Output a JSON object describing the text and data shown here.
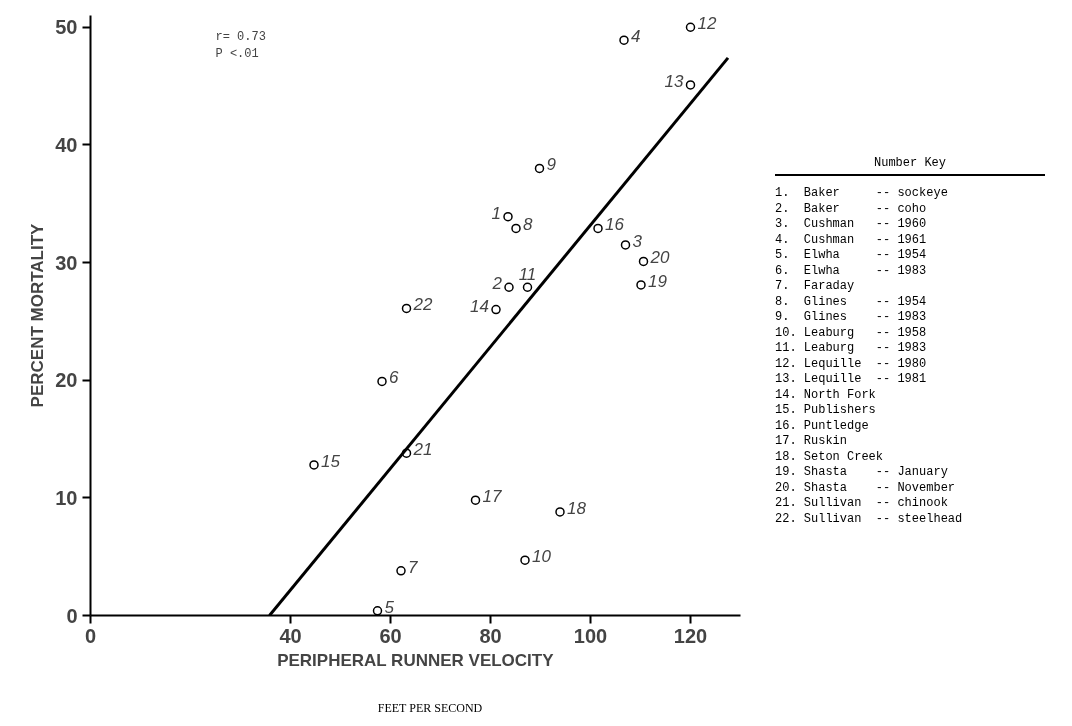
{
  "chart_data": {
    "type": "scatter",
    "xlabel": "PERIPHERAL RUNNER VELOCITY",
    "ylabel": "PERCENT MORTALITY",
    "xlim": [
      0,
      130
    ],
    "xticks": [
      0,
      40,
      60,
      80,
      100,
      120
    ],
    "ylim": [
      0,
      51
    ],
    "yticks": [
      0,
      10,
      20,
      30,
      40,
      50
    ],
    "grid": false,
    "line_style": "solid",
    "series": [
      {
        "marker": "circle",
        "color": "#000000",
        "x": [
          83.5,
          83.7,
          107.0,
          106.7,
          57.4,
          58.3,
          62.1,
          85.1,
          89.8,
          86.9,
          87.4,
          120,
          120,
          81.1,
          44.7,
          101.5,
          77.0,
          93.9,
          110.1,
          110.6,
          63.2,
          63.2
        ],
        "values": [
          33.9,
          27.9,
          31.5,
          48.9,
          0.4,
          19.9,
          3.8,
          32.9,
          38.0,
          4.7,
          27.9,
          50.0,
          45.1,
          26.0,
          12.8,
          32.9,
          9.8,
          8.8,
          28.1,
          30.1,
          13.8,
          26.1
        ]
      },
      {
        "type": "line",
        "marker": "none",
        "color": "#000000",
        "x": [
          35.8,
          127.5
        ],
        "values": [
          0,
          47.4
        ]
      }
    ],
    "annotations": [
      "r= 0.73",
      "P  <.01",
      "FEET PER SECOND",
      "Number Key",
      "1.  Baker     -- sockeye",
      "2.  Baker     -- coho",
      "3.  Cushman   -- 1960",
      "4.  Cushman   -- 1961",
      "5.  Elwha     -- 1954",
      "6.  Elwha     -- 1983",
      "7.  Faraday",
      "8.  Glines    -- 1954",
      "9.  Glines    -- 1983",
      "10. Leaburg   -- 1958",
      "11. Leaburg   -- 1983",
      "12. Lequille  -- 1980",
      "13. Lequille  -- 1981",
      "14. North Fork",
      "15. Publishers",
      "16. Puntledge",
      "17. Ruskin",
      "18. Seton Creek",
      "19. Shasta    -- January",
      "20. Shasta    -- November",
      "21. Sullivan  -- chinook",
      "22. Sullivan  -- steelhead",
      {
        "text": "1",
        "x": 83.5,
        "y": 33.9
      },
      {
        "text": "2",
        "x": 83.7,
        "y": 27.9
      },
      {
        "text": "3",
        "x": 107.0,
        "y": 31.5
      },
      {
        "text": "4",
        "x": 106.7,
        "y": 48.9
      },
      {
        "text": "5",
        "x": 57.4,
        "y": 0.4
      },
      {
        "text": "6",
        "x": 58.3,
        "y": 19.9
      },
      {
        "text": "7",
        "x": 62.1,
        "y": 3.8
      },
      {
        "text": "8",
        "x": 85.1,
        "y": 32.9
      },
      {
        "text": "9",
        "x": 89.8,
        "y": 38.0
      },
      {
        "text": "10",
        "x": 86.9,
        "y": 4.7
      },
      {
        "text": "11",
        "x": 87.4,
        "y": 27.9
      },
      {
        "text": "12",
        "x": 120,
        "y": 50.0
      },
      {
        "text": "13",
        "x": 120,
        "y": 45.1
      },
      {
        "text": "14",
        "x": 81.1,
        "y": 26.0
      },
      {
        "text": "15",
        "x": 44.7,
        "y": 12.8
      },
      {
        "text": "16",
        "x": 101.5,
        "y": 32.9
      },
      {
        "text": "17",
        "x": 77.0,
        "y": 9.8
      },
      {
        "text": "18",
        "x": 93.9,
        "y": 8.8
      },
      {
        "text": "19",
        "x": 110.1,
        "y": 28.1
      },
      {
        "text": "20",
        "x": 110.6,
        "y": 30.1
      },
      {
        "text": "21",
        "x": 63.2,
        "y": 13.8
      },
      {
        "text": "22",
        "x": 63.2,
        "y": 26.1
      }
    ]
  }
}
